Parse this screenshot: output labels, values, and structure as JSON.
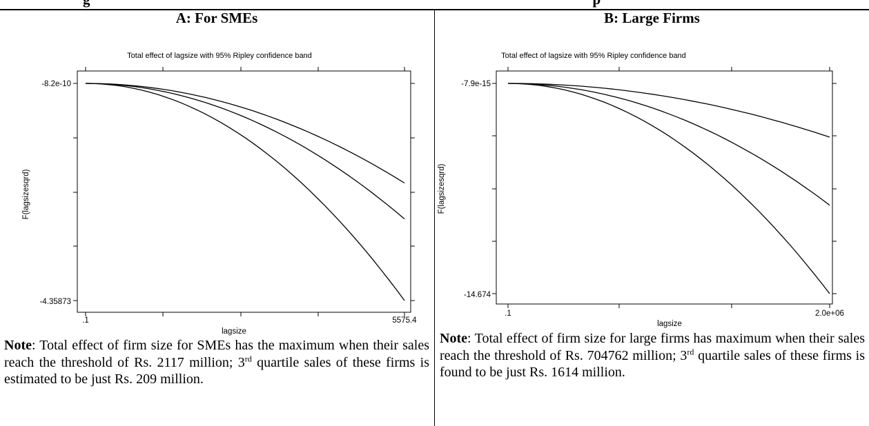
{
  "page": {
    "top_title_left": "g",
    "top_title_right": "p"
  },
  "panels": [
    {
      "heading": "A: For SMEs",
      "plot_title": "Total effect of lagsize with 95% Ripley confidence band",
      "ylabel": "F(lagsizesqrd)",
      "xlabel": "lagsize",
      "y_tick_labels": [
        "-8.2e-10",
        "-4.35873"
      ],
      "x_tick_labels": [
        ".1",
        "5575.4"
      ],
      "note": {
        "bold_lead": "Note",
        "text_a": ": Total effect of firm size for SMEs has the maximum when their sales reach the threshold of Rs. 2117 million; 3",
        "sup": "rd",
        "text_b": " quartile sales of these firms is estimated to be just Rs. 209 million."
      }
    },
    {
      "heading": "B: Large Firms",
      "plot_title": "Total effect of lagsize with 95% Ripley confidence band",
      "ylabel": "F(lagsizesqrd)",
      "xlabel": "lagsize",
      "y_tick_labels": [
        "-7.9e-15",
        "-14.674"
      ],
      "x_tick_labels": [
        ".1",
        "2.0e+06"
      ],
      "note": {
        "bold_lead": "Note",
        "text_a": ": Total effect of firm size for large firms has maximum when their sales reach the threshold of Rs. 704762 million; 3",
        "sup": "rd",
        "text_b": " quartile sales of these firms is found to be just Rs. 1614 million."
      }
    }
  ],
  "chart_data": [
    {
      "type": "line",
      "title": "Total effect of lagsize with 95% Ripley confidence band",
      "xlabel": "lagsize",
      "ylabel": "F(lagsizesqrd)",
      "xlim": [
        0.1,
        5575.4
      ],
      "ylim": [
        -4.35873,
        -8.2e-10
      ],
      "grid": false,
      "x": [
        0.1,
        1115.2,
        2230.2,
        3345.3,
        4460.3,
        5575.4
      ],
      "series": [
        {
          "values": [
            0,
            -0.08,
            -0.32,
            -0.72,
            -1.28,
            -2.0
          ]
        },
        {
          "values": [
            0,
            -0.11,
            -0.43,
            -0.98,
            -1.74,
            -2.72
          ]
        },
        {
          "values": [
            0,
            -0.17,
            -0.7,
            -1.57,
            -2.79,
            -4.35873
          ]
        }
      ]
    },
    {
      "type": "line",
      "title": "Total effect of lagsize with 95% Ripley confidence band",
      "xlabel": "lagsize",
      "ylabel": "F(lagsizesqrd)",
      "xlim": [
        0.1,
        2000000
      ],
      "ylim": [
        -14.674,
        -7.9e-15
      ],
      "grid": false,
      "x": [
        0.1,
        400000,
        800000,
        1200000,
        1600000,
        2000000
      ],
      "series": [
        {
          "values": [
            0,
            -0.15,
            -0.6,
            -1.35,
            -2.4,
            -3.75
          ]
        },
        {
          "values": [
            0,
            -0.34,
            -1.36,
            -3.06,
            -5.44,
            -8.5
          ]
        },
        {
          "values": [
            0,
            -0.587,
            -2.35,
            -5.28,
            -9.39,
            -14.674
          ]
        }
      ]
    }
  ]
}
